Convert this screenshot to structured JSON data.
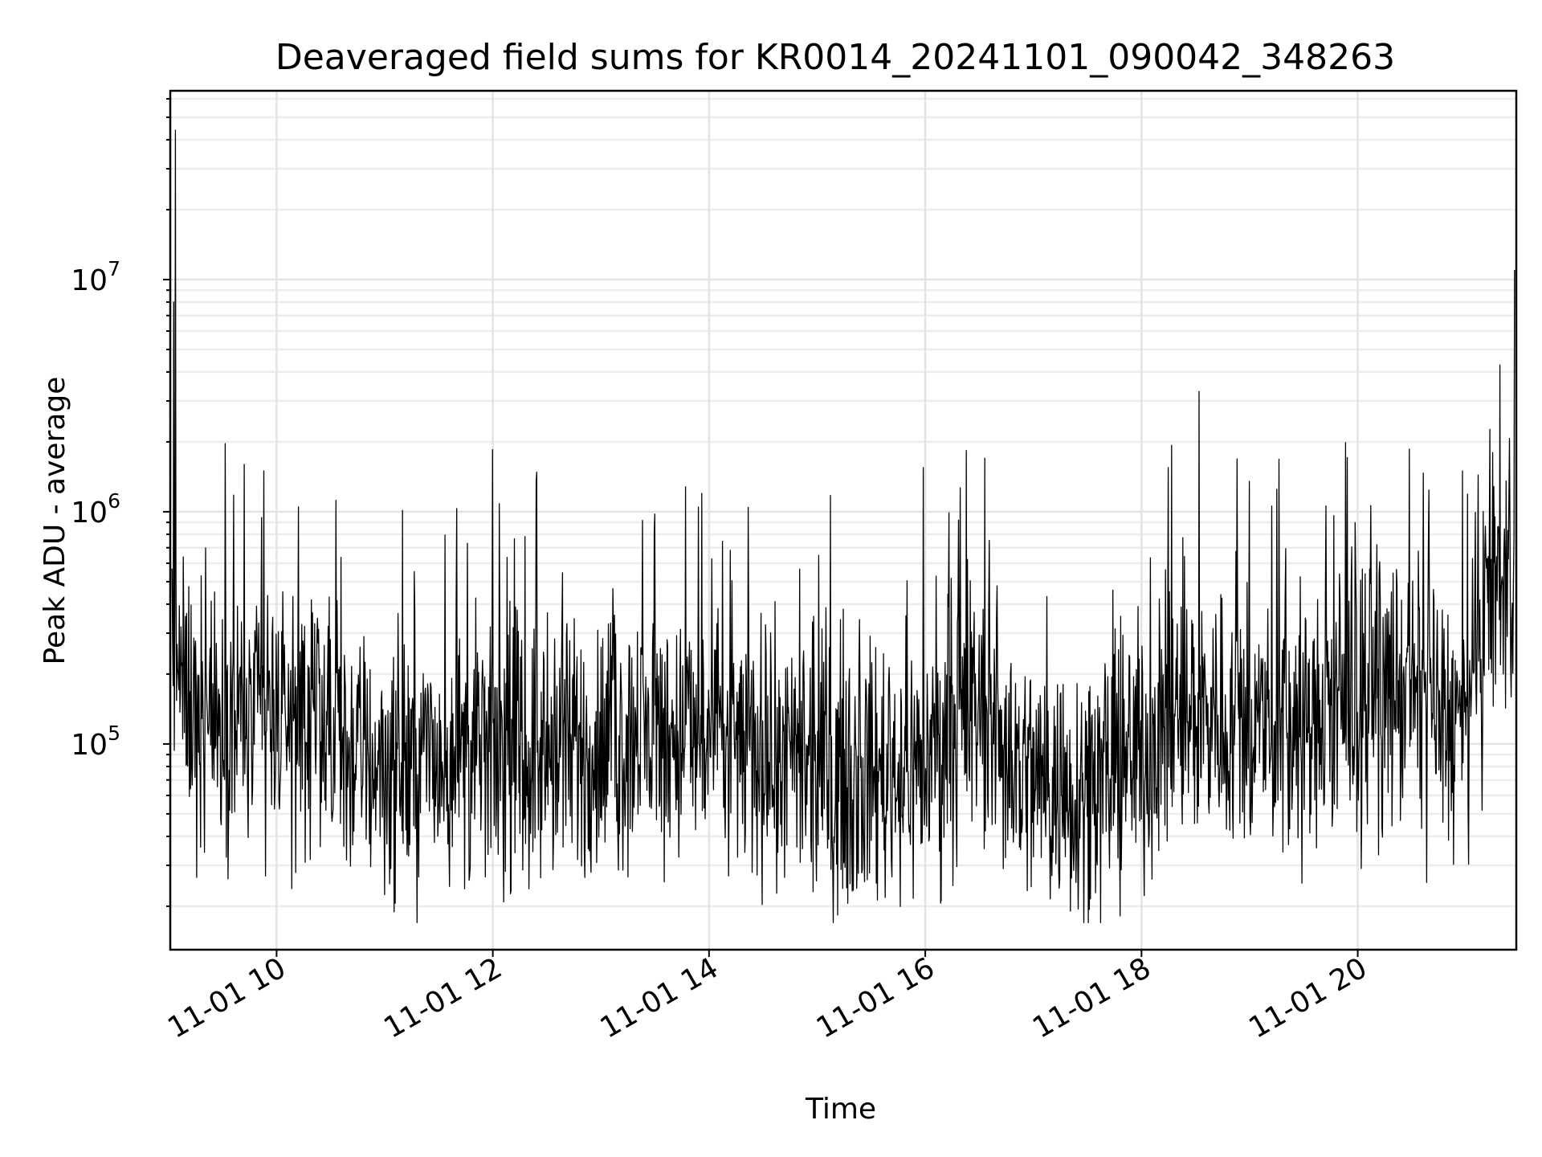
{
  "chart_data": {
    "type": "line",
    "title": "Deaveraged field sums for KR0014_20241101_090042_348263",
    "xlabel": "Time",
    "ylabel": "Peak ADU - average",
    "yscale": "log",
    "xlim": [
      "2024-11-01T09:01:00",
      "2024-11-01T21:28:00"
    ],
    "ylim": [
      13000,
      65000000
    ],
    "grid": "both",
    "line_color": "#000000",
    "x_ticks": [
      {
        "label": "11-01 10",
        "value": "2024-11-01T10:00:00"
      },
      {
        "label": "11-01 12",
        "value": "2024-11-01T12:00:00"
      },
      {
        "label": "11-01 14",
        "value": "2024-11-01T14:00:00"
      },
      {
        "label": "11-01 16",
        "value": "2024-11-01T16:00:00"
      },
      {
        "label": "11-01 18",
        "value": "2024-11-01T18:00:00"
      },
      {
        "label": "11-01 20",
        "value": "2024-11-01T20:00:00"
      }
    ],
    "y_ticks": [
      {
        "base": "10",
        "exp": "5",
        "value": 100000
      },
      {
        "base": "10",
        "exp": "6",
        "value": 1000000
      },
      {
        "base": "10",
        "exp": "7",
        "value": 10000000
      }
    ],
    "series": [
      {
        "baseline_profile": [
          {
            "x": "2024-11-01T09:02:00",
            "y": 300000
          },
          {
            "x": "2024-11-01T09:10:00",
            "y": 150000
          },
          {
            "x": "2024-11-01T09:30:00",
            "y": 120000
          },
          {
            "x": "2024-11-01T10:00:00",
            "y": 135000
          },
          {
            "x": "2024-11-01T10:30:00",
            "y": 100000
          },
          {
            "x": "2024-11-01T11:00:00",
            "y": 80000
          },
          {
            "x": "2024-11-01T11:30:00",
            "y": 85000
          },
          {
            "x": "2024-11-01T12:00:00",
            "y": 95000
          },
          {
            "x": "2024-11-01T12:30:00",
            "y": 85000
          },
          {
            "x": "2024-11-01T13:00:00",
            "y": 95000
          },
          {
            "x": "2024-11-01T13:30:00",
            "y": 110000
          },
          {
            "x": "2024-11-01T14:00:00",
            "y": 105000
          },
          {
            "x": "2024-11-01T14:30:00",
            "y": 90000
          },
          {
            "x": "2024-11-01T15:00:00",
            "y": 70000
          },
          {
            "x": "2024-11-01T15:30:00",
            "y": 75000
          },
          {
            "x": "2024-11-01T16:00:00",
            "y": 85000
          },
          {
            "x": "2024-11-01T16:30:00",
            "y": 140000
          },
          {
            "x": "2024-11-01T16:50:00",
            "y": 80000
          },
          {
            "x": "2024-11-01T17:15:00",
            "y": 62000
          },
          {
            "x": "2024-11-01T17:45:00",
            "y": 75000
          },
          {
            "x": "2024-11-01T18:00:00",
            "y": 95000
          },
          {
            "x": "2024-11-01T18:30:00",
            "y": 140000
          },
          {
            "x": "2024-11-01T19:00:00",
            "y": 115000
          },
          {
            "x": "2024-11-01T19:30:00",
            "y": 110000
          },
          {
            "x": "2024-11-01T20:00:00",
            "y": 150000
          },
          {
            "x": "2024-11-01T20:30:00",
            "y": 170000
          },
          {
            "x": "2024-11-01T21:00:00",
            "y": 110000
          },
          {
            "x": "2024-11-01T21:12:00",
            "y": 420000
          },
          {
            "x": "2024-11-01T21:27:00",
            "y": 500000
          }
        ],
        "spikes": [
          {
            "x": "2024-11-01T09:04:00",
            "y": 44000000
          },
          {
            "x": "2024-11-01T09:03:00",
            "y": 8000000
          },
          {
            "x": "2024-11-01T09:42:00",
            "y": 1600000
          },
          {
            "x": "2024-11-01T09:53:00",
            "y": 1500000
          },
          {
            "x": "2024-11-01T10:12:00",
            "y": 1050000
          },
          {
            "x": "2024-11-01T12:00:00",
            "y": 1850000
          },
          {
            "x": "2024-11-01T12:24:00",
            "y": 1350000
          },
          {
            "x": "2024-11-01T13:47:00",
            "y": 1280000
          },
          {
            "x": "2024-11-01T13:56:00",
            "y": 1200000
          },
          {
            "x": "2024-11-01T15:59:00",
            "y": 1550000
          },
          {
            "x": "2024-11-01T16:33:00",
            "y": 1700000
          },
          {
            "x": "2024-11-01T18:32:00",
            "y": 3300000
          },
          {
            "x": "2024-11-01T18:15:00",
            "y": 1550000
          },
          {
            "x": "2024-11-01T19:15:00",
            "y": 1250000
          },
          {
            "x": "2024-11-01T20:58:00",
            "y": 1500000
          },
          {
            "x": "2024-11-01T21:15:00",
            "y": 1800000
          },
          {
            "x": "2024-11-01T21:27:00",
            "y": 11000000
          }
        ]
      }
    ]
  }
}
